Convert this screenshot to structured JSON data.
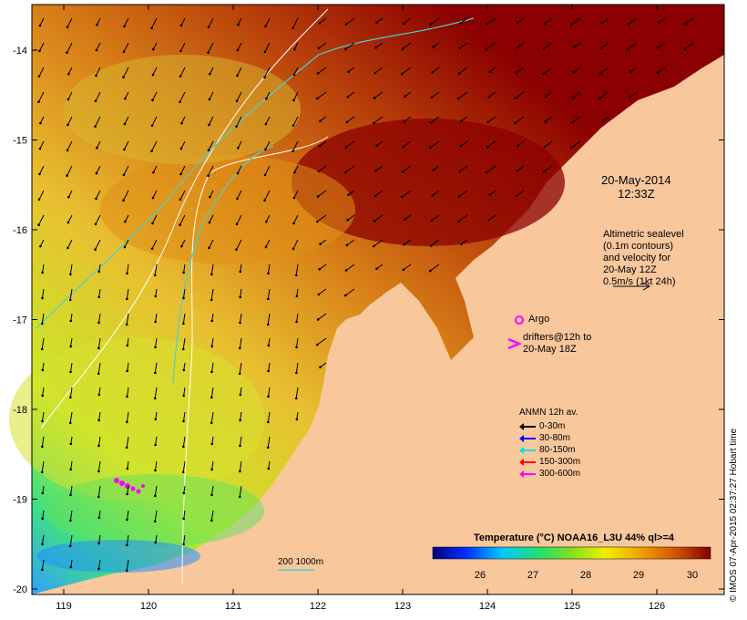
{
  "map": {
    "date": "20-May-2014",
    "time": "12:33Z",
    "x_ticks": [
      "119",
      "120",
      "121",
      "122",
      "123",
      "124",
      "125",
      "126"
    ],
    "y_ticks": [
      "-14",
      "-15",
      "-16",
      "-17",
      "-18",
      "-19",
      "-20"
    ],
    "altimetry_note": [
      "Altimetric sealevel",
      "(0.1m contours)",
      "and velocity for",
      "20-May 12Z",
      "0.5m/s (1kt 24h)"
    ],
    "argo_label": "Argo",
    "drifters_note": [
      "drifters@12h to",
      "20-May 18Z"
    ],
    "anmn_title": "ANMN 12h av.",
    "anmn_items": [
      {
        "label": "0-30m",
        "color": "#000000"
      },
      {
        "label": "30-80m",
        "color": "#0000ff"
      },
      {
        "label": "80-150m",
        "color": "#00e5e5"
      },
      {
        "label": "150-300m",
        "color": "#ff0000"
      },
      {
        "label": "300-600m",
        "color": "#ff00ff"
      }
    ],
    "bathy_label": "200  1000m",
    "colorbar_title": "Temperature (°C) NOAA16_L3U 44% ql>=4",
    "colorbar_ticks": [
      "26",
      "27",
      "28",
      "29",
      "30"
    ],
    "credit": "© IMOS 07-Apr-2015 02:37:27 Hobart time",
    "colors": {
      "land": "#f9c79c",
      "sea_hot": "#8b0000",
      "sea_warm": "#c8580a",
      "sea_mid": "#e0a020",
      "sea_cool": "#c9e028",
      "sea_cold": "#1e90ff",
      "bathy": "#4dd0d0"
    }
  }
}
